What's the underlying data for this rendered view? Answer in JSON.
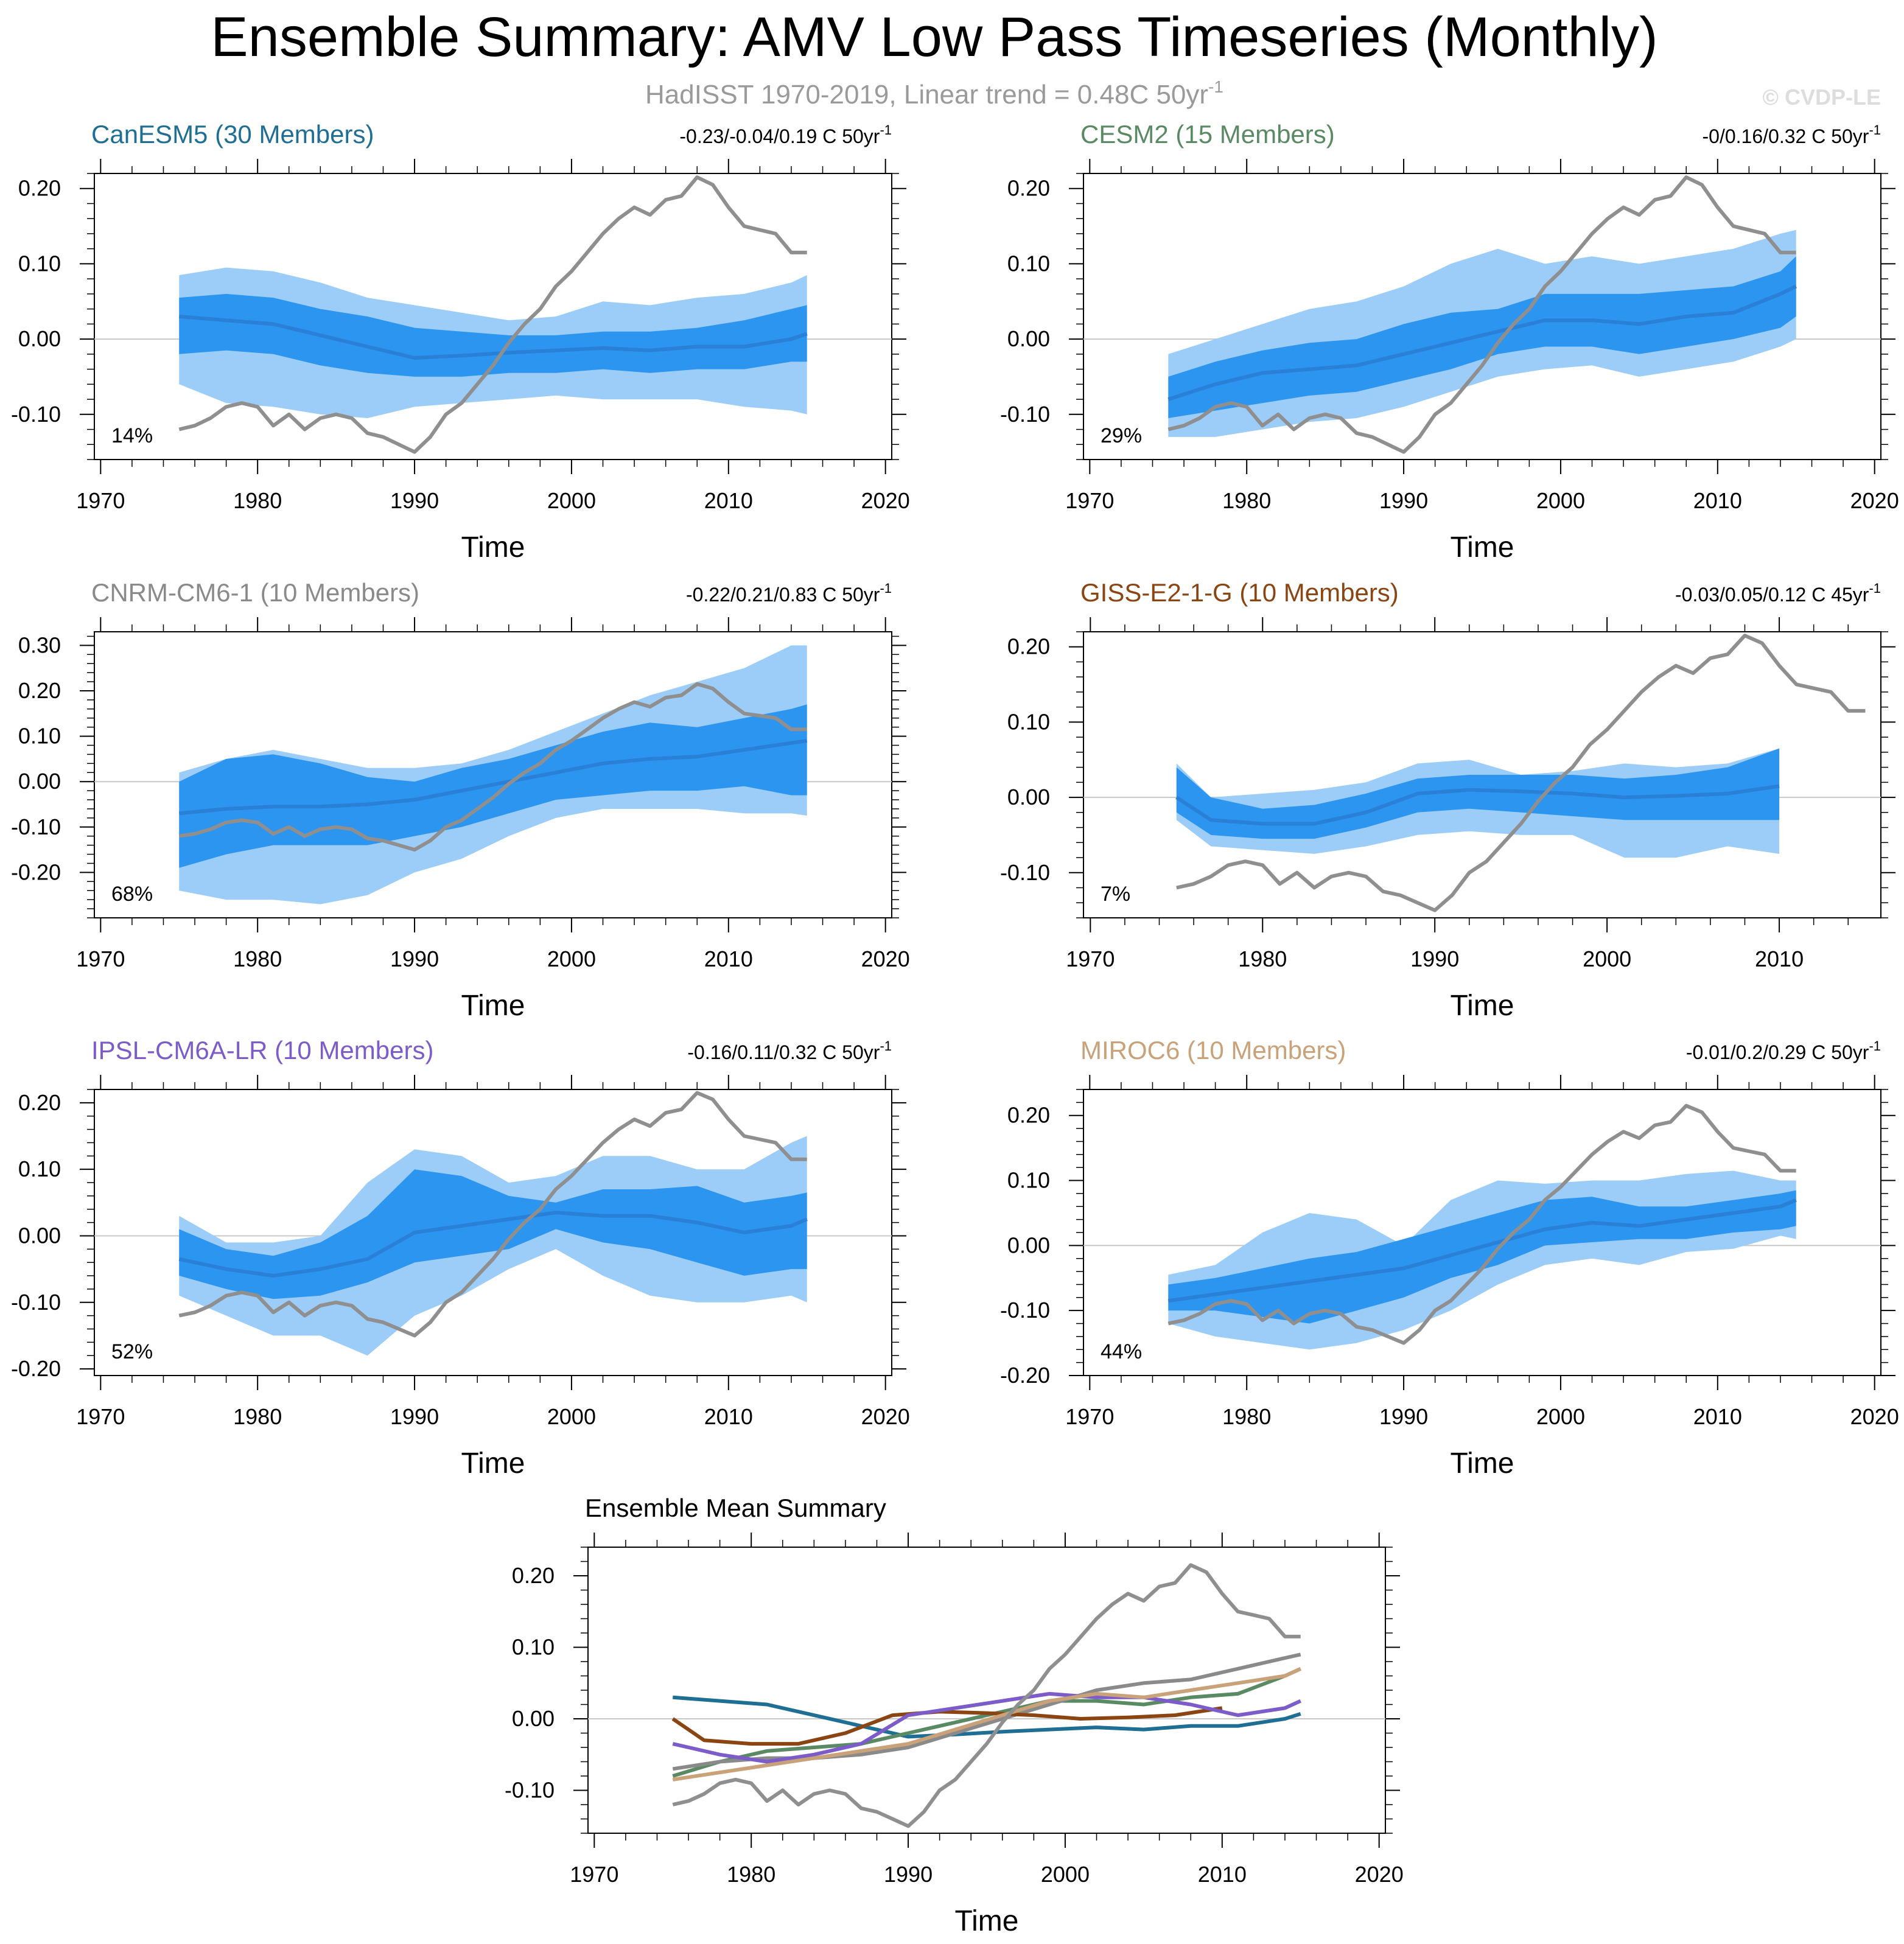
{
  "figure": {
    "title": "Ensemble Summary: AMV Low Pass Timeseries (Monthly)",
    "subtitle": "HadISST 1970-2019, Linear trend = 0.48C 50yr",
    "subtitle_sup": "-1",
    "watermark": "© CVDP-LE"
  },
  "colors": {
    "inner_band": "#2b95f0",
    "outer_band": "#9ccdf9",
    "ens_mean": "#2a7fd6",
    "obs": "#8f8f8f",
    "zero_line": "#c8c8c8"
  },
  "chart_data": [
    {
      "type": "area",
      "name": "canesm5",
      "title": "CanESM5 (30 Members)",
      "title_color": "#1f6e93",
      "trend_text": "-0.23/-0.04/0.19 C 50yr",
      "trend_sup": "-1",
      "pct_label": "14%",
      "xlabel": "Time",
      "xlim": [
        1969.6,
        2020.4
      ],
      "xticks": [
        1970,
        1980,
        1990,
        2000,
        2010,
        2020
      ],
      "ylim": [
        -0.16,
        0.22
      ],
      "yticks": [
        -0.1,
        0.0,
        0.1,
        0.2
      ],
      "ytick_labels": [
        "-0.10",
        "0.00",
        "0.10",
        "0.20"
      ],
      "x": [
        1975,
        1978,
        1981,
        1984,
        1987,
        1990,
        1993,
        1996,
        1999,
        2002,
        2005,
        2008,
        2011,
        2014,
        2015
      ],
      "mean": [
        0.03,
        0.025,
        0.02,
        0.005,
        -0.01,
        -0.025,
        -0.022,
        -0.018,
        -0.015,
        -0.012,
        -0.015,
        -0.01,
        -0.01,
        0.0,
        0.007
      ],
      "inner_lo": [
        -0.02,
        -0.015,
        -0.02,
        -0.035,
        -0.045,
        -0.05,
        -0.05,
        -0.045,
        -0.045,
        -0.04,
        -0.045,
        -0.04,
        -0.04,
        -0.03,
        -0.03
      ],
      "inner_hi": [
        0.055,
        0.06,
        0.055,
        0.04,
        0.03,
        0.015,
        0.01,
        0.005,
        0.005,
        0.01,
        0.01,
        0.015,
        0.025,
        0.04,
        0.045
      ],
      "outer_lo": [
        -0.06,
        -0.085,
        -0.09,
        -0.1,
        -0.105,
        -0.09,
        -0.085,
        -0.08,
        -0.075,
        -0.08,
        -0.08,
        -0.08,
        -0.09,
        -0.095,
        -0.1
      ],
      "outer_hi": [
        0.085,
        0.095,
        0.09,
        0.075,
        0.055,
        0.045,
        0.035,
        0.025,
        0.03,
        0.05,
        0.045,
        0.055,
        0.06,
        0.075,
        0.085
      ]
    },
    {
      "type": "area",
      "name": "cesm2",
      "title": "CESM2 (15 Members)",
      "title_color": "#5a8a63",
      "trend_text": "-0/0.16/0.32 C 50yr",
      "trend_sup": "-1",
      "pct_label": "29%",
      "xlabel": "Time",
      "xlim": [
        1969.6,
        2020.4
      ],
      "xticks": [
        1970,
        1980,
        1990,
        2000,
        2010,
        2020
      ],
      "ylim": [
        -0.16,
        0.22
      ],
      "yticks": [
        -0.1,
        0.0,
        0.1,
        0.2
      ],
      "ytick_labels": [
        "-0.10",
        "0.00",
        "0.10",
        "0.20"
      ],
      "x": [
        1975,
        1978,
        1981,
        1984,
        1987,
        1990,
        1993,
        1996,
        1999,
        2002,
        2005,
        2008,
        2011,
        2014,
        2015
      ],
      "mean": [
        -0.08,
        -0.06,
        -0.045,
        -0.04,
        -0.035,
        -0.02,
        -0.005,
        0.01,
        0.025,
        0.025,
        0.02,
        0.03,
        0.035,
        0.06,
        0.07
      ],
      "inner_lo": [
        -0.105,
        -0.095,
        -0.085,
        -0.075,
        -0.07,
        -0.055,
        -0.04,
        -0.02,
        -0.01,
        -0.01,
        -0.02,
        -0.01,
        0.0,
        0.015,
        0.03
      ],
      "inner_hi": [
        -0.05,
        -0.03,
        -0.015,
        -0.005,
        0.0,
        0.02,
        0.035,
        0.04,
        0.06,
        0.06,
        0.06,
        0.065,
        0.07,
        0.09,
        0.11
      ],
      "outer_lo": [
        -0.13,
        -0.13,
        -0.12,
        -0.11,
        -0.105,
        -0.09,
        -0.07,
        -0.05,
        -0.04,
        -0.035,
        -0.05,
        -0.04,
        -0.03,
        -0.01,
        0.0
      ],
      "outer_hi": [
        -0.02,
        0.0,
        0.02,
        0.04,
        0.05,
        0.07,
        0.1,
        0.12,
        0.1,
        0.11,
        0.1,
        0.11,
        0.12,
        0.14,
        0.145
      ]
    },
    {
      "type": "area",
      "name": "cnrm-cm6-1",
      "title": "CNRM-CM6-1 (10 Members)",
      "title_color": "#8a8a8a",
      "trend_text": "-0.22/0.21/0.83 C 50yr",
      "trend_sup": "-1",
      "pct_label": "68%",
      "xlabel": "Time",
      "xlim": [
        1969.6,
        2020.4
      ],
      "xticks": [
        1970,
        1980,
        1990,
        2000,
        2010,
        2020
      ],
      "ylim": [
        -0.3,
        0.33
      ],
      "yticks": [
        -0.2,
        -0.1,
        0.0,
        0.1,
        0.2,
        0.3
      ],
      "ytick_labels": [
        "-0.20",
        "-0.10",
        "0.00",
        "0.10",
        "0.20",
        "0.30"
      ],
      "x": [
        1975,
        1978,
        1981,
        1984,
        1987,
        1990,
        1993,
        1996,
        1999,
        2002,
        2005,
        2008,
        2011,
        2014,
        2015
      ],
      "mean": [
        -0.07,
        -0.06,
        -0.055,
        -0.055,
        -0.05,
        -0.04,
        -0.02,
        0.0,
        0.02,
        0.04,
        0.05,
        0.055,
        0.07,
        0.085,
        0.09
      ],
      "inner_lo": [
        -0.19,
        -0.16,
        -0.14,
        -0.14,
        -0.14,
        -0.12,
        -0.1,
        -0.07,
        -0.04,
        -0.03,
        -0.02,
        -0.02,
        -0.01,
        -0.03,
        -0.03
      ],
      "inner_hi": [
        0.0,
        0.05,
        0.06,
        0.04,
        0.01,
        0.0,
        0.03,
        0.05,
        0.08,
        0.11,
        0.13,
        0.12,
        0.14,
        0.16,
        0.17
      ],
      "outer_lo": [
        -0.24,
        -0.26,
        -0.26,
        -0.27,
        -0.25,
        -0.2,
        -0.17,
        -0.12,
        -0.08,
        -0.06,
        -0.06,
        -0.06,
        -0.07,
        -0.07,
        -0.075
      ],
      "outer_hi": [
        0.02,
        0.05,
        0.07,
        0.05,
        0.03,
        0.03,
        0.04,
        0.07,
        0.11,
        0.15,
        0.19,
        0.22,
        0.25,
        0.3,
        0.3
      ]
    },
    {
      "type": "area",
      "name": "giss-e2-1-g",
      "title": "GISS-E2-1-G (10 Members)",
      "title_color": "#8b4513",
      "trend_text": "-0.03/0.05/0.12 C 45yr",
      "trend_sup": "-1",
      "pct_label": "7%",
      "xlabel": "Time",
      "xlim": [
        1969.6,
        2015.9
      ],
      "xticks": [
        1970,
        1980,
        1990,
        2000,
        2010
      ],
      "ylim": [
        -0.16,
        0.22
      ],
      "yticks": [
        -0.1,
        0.0,
        0.1,
        0.2
      ],
      "ytick_labels": [
        "-0.10",
        "0.00",
        "0.10",
        "0.20"
      ],
      "x": [
        1975,
        1977,
        1980,
        1983,
        1986,
        1989,
        1992,
        1995,
        1998,
        2001,
        2004,
        2007,
        2010
      ],
      "mean": [
        0.0,
        -0.03,
        -0.035,
        -0.035,
        -0.02,
        0.005,
        0.01,
        0.008,
        0.005,
        0.0,
        0.002,
        0.005,
        0.015
      ],
      "inner_lo": [
        -0.02,
        -0.05,
        -0.055,
        -0.055,
        -0.04,
        -0.02,
        -0.015,
        -0.02,
        -0.025,
        -0.03,
        -0.03,
        -0.03,
        -0.03
      ],
      "inner_hi": [
        0.04,
        0.0,
        -0.015,
        -0.01,
        0.005,
        0.025,
        0.03,
        0.03,
        0.03,
        0.025,
        0.03,
        0.04,
        0.065
      ],
      "outer_lo": [
        -0.03,
        -0.065,
        -0.07,
        -0.075,
        -0.065,
        -0.05,
        -0.045,
        -0.05,
        -0.05,
        -0.08,
        -0.08,
        -0.065,
        -0.075
      ],
      "outer_hi": [
        0.045,
        0.0,
        0.005,
        0.01,
        0.02,
        0.045,
        0.05,
        0.03,
        0.035,
        0.045,
        0.04,
        0.045,
        0.065
      ]
    },
    {
      "type": "area",
      "name": "ipsl-cm6a-lr",
      "title": "IPSL-CM6A-LR (10 Members)",
      "title_color": "#7b5cc9",
      "trend_text": "-0.16/0.11/0.32 C 50yr",
      "trend_sup": "-1",
      "pct_label": "52%",
      "xlabel": "Time",
      "xlim": [
        1969.6,
        2020.4
      ],
      "xticks": [
        1970,
        1980,
        1990,
        2000,
        2010,
        2020
      ],
      "ylim": [
        -0.21,
        0.22
      ],
      "yticks": [
        -0.2,
        -0.1,
        0.0,
        0.1,
        0.2
      ],
      "ytick_labels": [
        "-0.20",
        "-0.10",
        "0.00",
        "0.10",
        "0.20"
      ],
      "x": [
        1975,
        1978,
        1981,
        1984,
        1987,
        1990,
        1993,
        1996,
        1999,
        2002,
        2005,
        2008,
        2011,
        2014,
        2015
      ],
      "mean": [
        -0.035,
        -0.05,
        -0.06,
        -0.05,
        -0.035,
        0.005,
        0.015,
        0.025,
        0.035,
        0.03,
        0.03,
        0.02,
        0.005,
        0.015,
        0.025
      ],
      "inner_lo": [
        -0.06,
        -0.08,
        -0.095,
        -0.09,
        -0.07,
        -0.04,
        -0.03,
        -0.02,
        0.01,
        -0.01,
        -0.02,
        -0.04,
        -0.06,
        -0.05,
        -0.05
      ],
      "inner_hi": [
        0.01,
        -0.02,
        -0.03,
        -0.01,
        0.03,
        0.1,
        0.09,
        0.06,
        0.05,
        0.07,
        0.07,
        0.075,
        0.05,
        0.06,
        0.065
      ],
      "outer_lo": [
        -0.09,
        -0.12,
        -0.15,
        -0.15,
        -0.18,
        -0.12,
        -0.09,
        -0.05,
        -0.02,
        -0.06,
        -0.09,
        -0.1,
        -0.1,
        -0.09,
        -0.1
      ],
      "outer_hi": [
        0.03,
        -0.01,
        -0.01,
        0.0,
        0.08,
        0.13,
        0.12,
        0.08,
        0.09,
        0.12,
        0.12,
        0.1,
        0.1,
        0.14,
        0.15
      ]
    },
    {
      "type": "area",
      "name": "miroc6",
      "title": "MIROC6 (10 Members)",
      "title_color": "#c9a27a",
      "trend_text": "-0.01/0.2/0.29 C 50yr",
      "trend_sup": "-1",
      "pct_label": "44%",
      "xlabel": "Time",
      "xlim": [
        1969.6,
        2020.4
      ],
      "xticks": [
        1970,
        1980,
        1990,
        2000,
        2010,
        2020
      ],
      "ylim": [
        -0.2,
        0.24
      ],
      "yticks": [
        -0.2,
        -0.1,
        0.0,
        0.1,
        0.2
      ],
      "ytick_labels": [
        "-0.20",
        "-0.10",
        "0.00",
        "0.10",
        "0.20"
      ],
      "x": [
        1975,
        1978,
        1981,
        1984,
        1987,
        1990,
        1993,
        1996,
        1999,
        2002,
        2005,
        2008,
        2011,
        2014,
        2015
      ],
      "mean": [
        -0.085,
        -0.075,
        -0.065,
        -0.055,
        -0.045,
        -0.035,
        -0.015,
        0.005,
        0.025,
        0.035,
        0.03,
        0.04,
        0.05,
        0.06,
        0.07
      ],
      "inner_lo": [
        -0.1,
        -0.1,
        -0.11,
        -0.12,
        -0.1,
        -0.08,
        -0.05,
        -0.03,
        0.0,
        0.005,
        0.01,
        0.01,
        0.02,
        0.025,
        0.03
      ],
      "inner_hi": [
        -0.06,
        -0.05,
        -0.035,
        -0.02,
        -0.01,
        0.01,
        0.03,
        0.05,
        0.07,
        0.075,
        0.06,
        0.06,
        0.07,
        0.08,
        0.085
      ],
      "outer_lo": [
        -0.12,
        -0.14,
        -0.15,
        -0.16,
        -0.15,
        -0.13,
        -0.1,
        -0.06,
        -0.03,
        -0.02,
        -0.03,
        -0.01,
        -0.005,
        0.015,
        0.01
      ],
      "outer_hi": [
        -0.045,
        -0.03,
        0.02,
        0.05,
        0.04,
        0.0,
        0.07,
        0.1,
        0.095,
        0.1,
        0.1,
        0.11,
        0.115,
        0.1,
        0.1
      ]
    },
    {
      "type": "line",
      "name": "ensemble-mean-summary",
      "title": "Ensemble Mean Summary",
      "title_color": "#000000",
      "xlabel": "Time",
      "xlim": [
        1969.6,
        2020.4
      ],
      "xticks": [
        1970,
        1980,
        1990,
        2000,
        2010,
        2020
      ],
      "ylim": [
        -0.16,
        0.24
      ],
      "yticks": [
        -0.1,
        0.0,
        0.1,
        0.2
      ],
      "ytick_labels": [
        "-0.10",
        "0.00",
        "0.10",
        "0.20"
      ],
      "series": [
        {
          "name": "CanESM5",
          "color": "#1f6e93",
          "x": [
            1975,
            1978,
            1981,
            1984,
            1987,
            1990,
            1993,
            1996,
            1999,
            2002,
            2005,
            2008,
            2011,
            2014,
            2015
          ],
          "values": [
            0.03,
            0.025,
            0.02,
            0.005,
            -0.01,
            -0.025,
            -0.022,
            -0.018,
            -0.015,
            -0.012,
            -0.015,
            -0.01,
            -0.01,
            0.0,
            0.007
          ]
        },
        {
          "name": "CESM2",
          "color": "#5a8a63",
          "x": [
            1975,
            1978,
            1981,
            1984,
            1987,
            1990,
            1993,
            1996,
            1999,
            2002,
            2005,
            2008,
            2011,
            2014,
            2015
          ],
          "values": [
            -0.08,
            -0.06,
            -0.045,
            -0.04,
            -0.035,
            -0.02,
            -0.005,
            0.01,
            0.025,
            0.025,
            0.02,
            0.03,
            0.035,
            0.06,
            0.07
          ]
        },
        {
          "name": "CNRM-CM6-1",
          "color": "#8a8a8a",
          "x": [
            1975,
            1978,
            1981,
            1984,
            1987,
            1990,
            1993,
            1996,
            1999,
            2002,
            2005,
            2008,
            2011,
            2014,
            2015
          ],
          "values": [
            -0.07,
            -0.06,
            -0.055,
            -0.055,
            -0.05,
            -0.04,
            -0.02,
            0.0,
            0.02,
            0.04,
            0.05,
            0.055,
            0.07,
            0.085,
            0.09
          ]
        },
        {
          "name": "GISS-E2-1-G",
          "color": "#8b4513",
          "x": [
            1975,
            1977,
            1980,
            1983,
            1986,
            1989,
            1992,
            1995,
            1998,
            2001,
            2004,
            2007,
            2010
          ],
          "values": [
            0.0,
            -0.03,
            -0.035,
            -0.035,
            -0.02,
            0.005,
            0.01,
            0.008,
            0.005,
            0.0,
            0.002,
            0.005,
            0.015
          ]
        },
        {
          "name": "IPSL-CM6A-LR",
          "color": "#7b5cc9",
          "x": [
            1975,
            1978,
            1981,
            1984,
            1987,
            1990,
            1993,
            1996,
            1999,
            2002,
            2005,
            2008,
            2011,
            2014,
            2015
          ],
          "values": [
            -0.035,
            -0.05,
            -0.06,
            -0.05,
            -0.035,
            0.005,
            0.015,
            0.025,
            0.035,
            0.03,
            0.03,
            0.02,
            0.005,
            0.015,
            0.025
          ]
        },
        {
          "name": "MIROC6",
          "color": "#c9a27a",
          "x": [
            1975,
            1978,
            1981,
            1984,
            1987,
            1990,
            1993,
            1996,
            1999,
            2002,
            2005,
            2008,
            2011,
            2014,
            2015
          ],
          "values": [
            -0.085,
            -0.075,
            -0.065,
            -0.055,
            -0.045,
            -0.035,
            -0.015,
            0.005,
            0.025,
            0.035,
            0.03,
            0.04,
            0.05,
            0.06,
            0.07
          ]
        }
      ]
    }
  ],
  "observations": {
    "name": "HadISST",
    "x": [
      1975,
      1976,
      1977,
      1978,
      1979,
      1980,
      1981,
      1982,
      1983,
      1984,
      1985,
      1986,
      1987,
      1988,
      1989,
      1990,
      1991,
      1992,
      1993,
      1994,
      1995,
      1996,
      1997,
      1998,
      1999,
      2000,
      2001,
      2002,
      2003,
      2004,
      2005,
      2006,
      2007,
      2008,
      2009,
      2010,
      2011,
      2012,
      2013,
      2014,
      2015
    ],
    "values": [
      -0.12,
      -0.115,
      -0.105,
      -0.09,
      -0.085,
      -0.09,
      -0.115,
      -0.1,
      -0.12,
      -0.105,
      -0.1,
      -0.105,
      -0.125,
      -0.13,
      -0.14,
      -0.15,
      -0.13,
      -0.1,
      -0.085,
      -0.06,
      -0.035,
      -0.005,
      0.02,
      0.04,
      0.07,
      0.09,
      0.115,
      0.14,
      0.16,
      0.175,
      0.165,
      0.185,
      0.19,
      0.215,
      0.205,
      0.175,
      0.15,
      0.145,
      0.14,
      0.115,
      0.115
    ]
  }
}
